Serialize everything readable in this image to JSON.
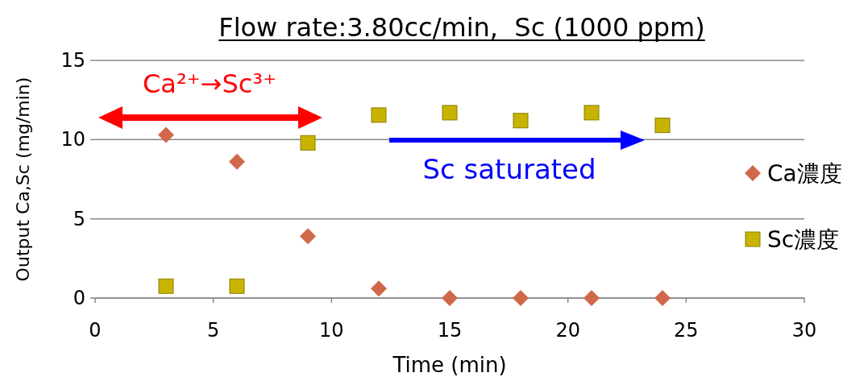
{
  "chart_data": {
    "type": "scatter",
    "title": "Flow rate:3.80cc/min,  Sc (1000 ppm)",
    "xlabel": "Time (min)",
    "ylabel": "Output Ca,Sc (mg/min)",
    "x": [
      3,
      6,
      9,
      12,
      15,
      18,
      21,
      24
    ],
    "series": [
      {
        "name": "Ca濃度",
        "color": "#d0694a",
        "marker": "diamond",
        "values": [
          10.3,
          8.6,
          3.9,
          0.6,
          0,
          0,
          0,
          0
        ]
      },
      {
        "name": "Sc濃度",
        "color": "#c8b400",
        "marker": "square",
        "values": [
          0.75,
          0.75,
          9.8,
          11.55,
          11.7,
          11.2,
          11.7,
          10.9
        ]
      }
    ],
    "xlim": [
      0,
      30
    ],
    "xticks": [
      0,
      5,
      10,
      15,
      20,
      25,
      30
    ],
    "ylim": [
      0,
      15
    ],
    "yticks": [
      0,
      5,
      10,
      15
    ],
    "grid": "y",
    "legend": "right",
    "annotations": [
      "Ca²⁺→Sc³⁺",
      "Sc saturated"
    ]
  }
}
